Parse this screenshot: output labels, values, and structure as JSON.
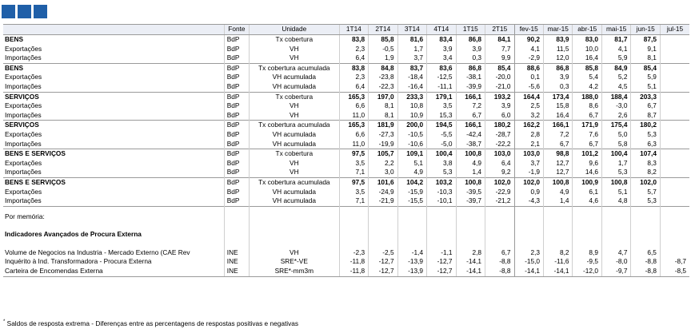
{
  "header": {
    "col_label": "",
    "col_source": "Fonte",
    "col_unit": "Unidade",
    "periods": [
      "1T14",
      "2T14",
      "3T14",
      "4T14",
      "1T15",
      "2T15",
      "fev-15",
      "mar-15",
      "abr-15",
      "mai-15",
      "jun-15",
      "jul-15"
    ]
  },
  "groups": [
    {
      "rows": [
        {
          "label": "BENS",
          "source": "BdP",
          "unit": "Tx cobertura",
          "bold": true,
          "values": [
            "83,8",
            "85,8",
            "81,6",
            "83,4",
            "86,8",
            "84,1",
            "90,2",
            "83,9",
            "83,0",
            "81,7",
            "87,5",
            ""
          ]
        },
        {
          "label": "Exportações",
          "source": "BdP",
          "unit": "VH",
          "bold": false,
          "values": [
            "2,3",
            "-0,5",
            "1,7",
            "3,9",
            "3,9",
            "7,7",
            "4,1",
            "11,5",
            "10,0",
            "4,1",
            "9,1",
            ""
          ]
        },
        {
          "label": "Importações",
          "source": "BdP",
          "unit": "VH",
          "bold": false,
          "values": [
            "6,4",
            "1,9",
            "3,7",
            "3,4",
            "0,3",
            "9,9",
            "-2,9",
            "12,0",
            "16,4",
            "5,9",
            "8,1",
            ""
          ]
        }
      ]
    },
    {
      "rows": [
        {
          "label": "BENS",
          "source": "BdP",
          "unit": "Tx cobertura acumulada",
          "bold": true,
          "values": [
            "83,8",
            "84,8",
            "83,7",
            "83,6",
            "86,8",
            "85,4",
            "88,6",
            "86,8",
            "85,8",
            "84,9",
            "85,4",
            ""
          ]
        },
        {
          "label": "Exportações",
          "source": "BdP",
          "unit": "VH acumulada",
          "bold": false,
          "values": [
            "2,3",
            "-23,8",
            "-18,4",
            "-12,5",
            "-38,1",
            "-20,0",
            "0,1",
            "3,9",
            "5,4",
            "5,2",
            "5,9",
            ""
          ]
        },
        {
          "label": "Importações",
          "source": "BdP",
          "unit": "VH acumulada",
          "bold": false,
          "values": [
            "6,4",
            "-22,3",
            "-16,4",
            "-11,1",
            "-39,9",
            "-21,0",
            "-5,6",
            "0,3",
            "4,2",
            "4,5",
            "5,1",
            ""
          ]
        }
      ]
    },
    {
      "rows": [
        {
          "label": "SERVIÇOS",
          "source": "BdP",
          "unit": "Tx cobertura",
          "bold": true,
          "values": [
            "165,3",
            "197,0",
            "233,3",
            "179,1",
            "166,1",
            "193,2",
            "164,4",
            "173,4",
            "188,0",
            "188,4",
            "203,3",
            ""
          ]
        },
        {
          "label": "Exportações",
          "source": "BdP",
          "unit": "VH",
          "bold": false,
          "values": [
            "6,6",
            "8,1",
            "10,8",
            "3,5",
            "7,2",
            "3,9",
            "2,5",
            "15,8",
            "8,6",
            "-3,0",
            "6,7",
            ""
          ]
        },
        {
          "label": "Importações",
          "source": "BdP",
          "unit": "VH",
          "bold": false,
          "values": [
            "11,0",
            "8,1",
            "10,9",
            "15,3",
            "6,7",
            "6,0",
            "3,2",
            "16,4",
            "6,7",
            "2,6",
            "8,7",
            ""
          ]
        }
      ]
    },
    {
      "rows": [
        {
          "label": "SERVIÇOS",
          "source": "BdP",
          "unit": "Tx cobertura acumulada",
          "bold": true,
          "values": [
            "165,3",
            "181,9",
            "200,0",
            "194,5",
            "166,1",
            "180,2",
            "162,2",
            "166,1",
            "171,9",
            "175,4",
            "180,2",
            ""
          ]
        },
        {
          "label": "Exportações",
          "source": "BdP",
          "unit": "VH acumulada",
          "bold": false,
          "values": [
            "6,6",
            "-27,3",
            "-10,5",
            "-5,5",
            "-42,4",
            "-28,7",
            "2,8",
            "7,2",
            "7,6",
            "5,0",
            "5,3",
            ""
          ]
        },
        {
          "label": "Importações",
          "source": "BdP",
          "unit": "VH acumulada",
          "bold": false,
          "values": [
            "11,0",
            "-19,9",
            "-10,6",
            "-5,0",
            "-38,7",
            "-22,2",
            "2,1",
            "6,7",
            "6,7",
            "5,8",
            "6,3",
            ""
          ]
        }
      ]
    },
    {
      "rows": [
        {
          "label": "BENS E SERVIÇOS",
          "source": "BdP",
          "unit": "Tx cobertura",
          "bold": true,
          "values": [
            "97,5",
            "105,7",
            "109,1",
            "100,4",
            "100,8",
            "103,0",
            "103,0",
            "98,8",
            "101,2",
            "100,4",
            "107,4",
            ""
          ]
        },
        {
          "label": "Exportações",
          "source": "BdP",
          "unit": "VH",
          "bold": false,
          "values": [
            "3,5",
            "2,2",
            "5,1",
            "3,8",
            "4,9",
            "6,4",
            "3,7",
            "12,7",
            "9,6",
            "1,7",
            "8,3",
            ""
          ]
        },
        {
          "label": "Importações",
          "source": "BdP",
          "unit": "VH",
          "bold": false,
          "values": [
            "7,1",
            "3,0",
            "4,9",
            "5,3",
            "1,4",
            "9,2",
            "-1,9",
            "12,7",
            "14,6",
            "5,3",
            "8,2",
            ""
          ]
        }
      ]
    },
    {
      "rows": [
        {
          "label": "BENS E SERVIÇOS",
          "source": "BdP",
          "unit": "Tx cobertura acumulada",
          "bold": true,
          "values": [
            "97,5",
            "101,6",
            "104,2",
            "103,2",
            "100,8",
            "102,0",
            "102,0",
            "100,8",
            "100,9",
            "100,8",
            "102,0",
            ""
          ]
        },
        {
          "label": "Exportações",
          "source": "BdP",
          "unit": "VH acumulada",
          "bold": false,
          "values": [
            "3,5",
            "-24,9",
            "-15,9",
            "-10,3",
            "-39,5",
            "-22,9",
            "0,9",
            "4,9",
            "6,1",
            "5,1",
            "5,7",
            ""
          ]
        },
        {
          "label": "Importações",
          "source": "BdP",
          "unit": "VH acumulada",
          "bold": false,
          "values": [
            "7,1",
            "-21,9",
            "-15,5",
            "-10,1",
            "-39,7",
            "-21,2",
            "-4,3",
            "1,4",
            "4,6",
            "4,8",
            "5,3",
            ""
          ]
        }
      ]
    }
  ],
  "memo": {
    "label": "Por memória:",
    "heading": "Indicadores Avançados de Procura Externa",
    "rows": [
      {
        "label": "Volume de Negocios na Industria - Mercado Externo (CAE Rev",
        "source": "INE",
        "unit": "VH",
        "values": [
          "-2,3",
          "-2,5",
          "-1,4",
          "-1,1",
          "2,8",
          "6,7",
          "2,3",
          "8,2",
          "8,9",
          "4,7",
          "6,5",
          ""
        ]
      },
      {
        "label": "Inquérito à Ind. Transformadora - Procura Externa",
        "source": "INE",
        "unit": "SRE*-VE",
        "values": [
          "-11,8",
          "-12,7",
          "-13,9",
          "-12,7",
          "-14,1",
          "-8,8",
          "-15,0",
          "-11,6",
          "-9,5",
          "-8,0",
          "-8,8",
          "-8,7"
        ]
      },
      {
        "label": "Carteira de Encomendas Externa",
        "source": "INE",
        "unit": "SRE*-mm3m",
        "values": [
          "-11,8",
          "-12,7",
          "-13,9",
          "-12,7",
          "-14,1",
          "-8,8",
          "-14,1",
          "-14,1",
          "-12,0",
          "-9,7",
          "-8,8",
          "-8,5"
        ]
      }
    ]
  },
  "footnote": {
    "marker": "*",
    "text": "Saldos de resposta extrema - Diferenças entre as percentagens de respostas positivas e negativas"
  }
}
